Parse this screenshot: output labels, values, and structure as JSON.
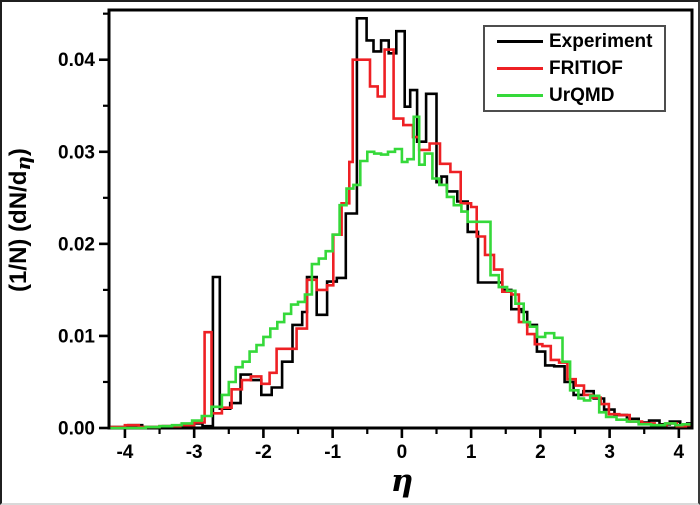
{
  "figure": {
    "background": "#ffffff",
    "frame_color": "#000000",
    "legend_border_color": "#4d4d4d"
  },
  "chart_data": {
    "type": "step-histogram",
    "title": "",
    "xlabel": "η",
    "ylabel": "(1/N) (dN/dη)",
    "ylabel_parts": [
      "(1/N) (dN/d",
      "η",
      ")"
    ],
    "xlim": [
      -4.23,
      4.19
    ],
    "ylim": [
      0,
      0.0454
    ],
    "grid": false,
    "legend_position": "top-right",
    "x_ticks": [
      -4,
      -3,
      -2,
      -1,
      0,
      1,
      2,
      3,
      4
    ],
    "x_tick_labels": [
      "-4",
      "-3",
      "-2",
      "-1",
      "0",
      "1",
      "2",
      "3",
      "4"
    ],
    "x_minor_ticks": [
      -3.5,
      -2.5,
      -1.5,
      -0.5,
      0.5,
      1.5,
      2.5,
      3.5
    ],
    "y_ticks": [
      0,
      0.01,
      0.02,
      0.03,
      0.04
    ],
    "y_tick_labels": [
      "0.00",
      "0.01",
      "0.02",
      "0.03",
      "0.04"
    ],
    "y_minor_ticks": [
      0.005,
      0.015,
      0.025,
      0.035,
      0.045
    ],
    "series": [
      {
        "name": "Experiment",
        "color": "#000000",
        "steps": [
          [
            -4.21,
            0.0001
          ],
          [
            -3.95,
            0.0003
          ],
          [
            -3.75,
            0.0001
          ],
          [
            -3.45,
            0.0002
          ],
          [
            -3.15,
            0.0003
          ],
          [
            -3.0,
            0.0005
          ],
          [
            -2.88,
            0.0002
          ],
          [
            -2.73,
            0.0164
          ],
          [
            -2.63,
            0.0021
          ],
          [
            -2.48,
            0.0027
          ],
          [
            -2.33,
            0.0058
          ],
          [
            -2.18,
            0.0052
          ],
          [
            -2.03,
            0.0036
          ],
          [
            -1.88,
            0.0044
          ],
          [
            -1.73,
            0.0072
          ],
          [
            -1.58,
            0.0112
          ],
          [
            -1.44,
            0.0126
          ],
          [
            -1.37,
            0.0164
          ],
          [
            -1.23,
            0.0123
          ],
          [
            -1.08,
            0.0159
          ],
          [
            -0.94,
            0.0163
          ],
          [
            -0.81,
            0.0233
          ],
          [
            -0.65,
            0.0445
          ],
          [
            -0.51,
            0.0421
          ],
          [
            -0.41,
            0.0409
          ],
          [
            -0.3,
            0.0421
          ],
          [
            -0.19,
            0.0407
          ],
          [
            -0.08,
            0.0431
          ],
          [
            0.04,
            0.0349
          ],
          [
            0.12,
            0.0367
          ],
          [
            0.22,
            0.0311
          ],
          [
            0.35,
            0.0363
          ],
          [
            0.5,
            0.0267
          ],
          [
            0.57,
            0.0273
          ],
          [
            0.65,
            0.0257
          ],
          [
            0.8,
            0.0246
          ],
          [
            0.95,
            0.0213
          ],
          [
            1.1,
            0.0158
          ],
          [
            1.45,
            0.015
          ],
          [
            1.58,
            0.0129
          ],
          [
            1.73,
            0.0126
          ],
          [
            1.81,
            0.0112
          ],
          [
            1.95,
            0.0083
          ],
          [
            2.07,
            0.0068
          ],
          [
            2.2,
            0.0067
          ],
          [
            2.35,
            0.005
          ],
          [
            2.48,
            0.0036
          ],
          [
            2.62,
            0.004
          ],
          [
            2.77,
            0.0032
          ],
          [
            2.92,
            0.002
          ],
          [
            3.07,
            0.0014
          ],
          [
            3.25,
            0.001
          ],
          [
            3.42,
            0.0006
          ],
          [
            3.57,
            0.0008
          ],
          [
            3.72,
            0.0004
          ],
          [
            3.87,
            0.0007
          ],
          [
            4.02,
            0.0003
          ],
          [
            4.12,
            0.0005
          ]
        ]
      },
      {
        "name": "FRITIOF",
        "color": "#ee2024",
        "steps": [
          [
            -4.21,
            0.0001
          ],
          [
            -4.0,
            0.0003
          ],
          [
            -3.8,
            0.0001
          ],
          [
            -3.5,
            0.0002
          ],
          [
            -3.2,
            0.0003
          ],
          [
            -3.0,
            0.0006
          ],
          [
            -2.85,
            0.0104
          ],
          [
            -2.75,
            0.0016
          ],
          [
            -2.6,
            0.0022
          ],
          [
            -2.46,
            0.0042
          ],
          [
            -2.31,
            0.0052
          ],
          [
            -2.18,
            0.0056
          ],
          [
            -2.03,
            0.0048
          ],
          [
            -1.91,
            0.006
          ],
          [
            -1.81,
            0.0086
          ],
          [
            -1.52,
            0.0108
          ],
          [
            -1.37,
            0.0161
          ],
          [
            -1.23,
            0.015
          ],
          [
            -1.08,
            0.0155
          ],
          [
            -0.99,
            0.021
          ],
          [
            -0.87,
            0.0244
          ],
          [
            -0.76,
            0.0289
          ],
          [
            -0.71,
            0.04
          ],
          [
            -0.46,
            0.0371
          ],
          [
            -0.35,
            0.036
          ],
          [
            -0.25,
            0.0411
          ],
          [
            -0.12,
            0.0336
          ],
          [
            0.02,
            0.0329
          ],
          [
            0.16,
            0.0316
          ],
          [
            0.25,
            0.0302
          ],
          [
            0.4,
            0.0309
          ],
          [
            0.55,
            0.0287
          ],
          [
            0.7,
            0.0278
          ],
          [
            0.85,
            0.0244
          ],
          [
            1.0,
            0.024
          ],
          [
            1.08,
            0.0208
          ],
          [
            1.2,
            0.0188
          ],
          [
            1.33,
            0.0172
          ],
          [
            1.45,
            0.0148
          ],
          [
            1.58,
            0.0145
          ],
          [
            1.69,
            0.0115
          ],
          [
            1.81,
            0.0102
          ],
          [
            1.92,
            0.0091
          ],
          [
            2.03,
            0.0089
          ],
          [
            2.15,
            0.0074
          ],
          [
            2.27,
            0.0071
          ],
          [
            2.39,
            0.0053
          ],
          [
            2.51,
            0.0046
          ],
          [
            2.63,
            0.0036
          ],
          [
            2.75,
            0.0033
          ],
          [
            2.87,
            0.0026
          ],
          [
            2.99,
            0.0015
          ],
          [
            3.14,
            0.0014
          ],
          [
            3.29,
            0.0007
          ],
          [
            3.47,
            0.0005
          ],
          [
            3.65,
            0.0003
          ],
          [
            3.82,
            0.0005
          ],
          [
            3.97,
            0.0002
          ],
          [
            4.1,
            0.0003
          ]
        ]
      },
      {
        "name": "UrQMD",
        "color": "#35d93a",
        "steps": [
          [
            -4.21,
            0.0
          ],
          [
            -3.7,
            0.0001
          ],
          [
            -3.5,
            0.0002
          ],
          [
            -3.32,
            0.0003
          ],
          [
            -3.18,
            0.0005
          ],
          [
            -3.03,
            0.0008
          ],
          [
            -2.89,
            0.0013
          ],
          [
            -2.75,
            0.0023
          ],
          [
            -2.6,
            0.0036
          ],
          [
            -2.5,
            0.005
          ],
          [
            -2.4,
            0.0066
          ],
          [
            -2.3,
            0.0072
          ],
          [
            -2.2,
            0.0083
          ],
          [
            -2.1,
            0.009
          ],
          [
            -2.0,
            0.0099
          ],
          [
            -1.9,
            0.0108
          ],
          [
            -1.8,
            0.0115
          ],
          [
            -1.7,
            0.0124
          ],
          [
            -1.6,
            0.0134
          ],
          [
            -1.5,
            0.0137
          ],
          [
            -1.4,
            0.0145
          ],
          [
            -1.3,
            0.0178
          ],
          [
            -1.2,
            0.0184
          ],
          [
            -1.1,
            0.0192
          ],
          [
            -1.0,
            0.021
          ],
          [
            -0.9,
            0.0242
          ],
          [
            -0.8,
            0.026
          ],
          [
            -0.7,
            0.0264
          ],
          [
            -0.6,
            0.029
          ],
          [
            -0.5,
            0.03
          ],
          [
            -0.4,
            0.0298
          ],
          [
            -0.3,
            0.0297
          ],
          [
            -0.2,
            0.03
          ],
          [
            -0.1,
            0.0303
          ],
          [
            0.0,
            0.0289
          ],
          [
            0.08,
            0.0292
          ],
          [
            0.17,
            0.0338
          ],
          [
            0.25,
            0.0286
          ],
          [
            0.33,
            0.0298
          ],
          [
            0.44,
            0.0271
          ],
          [
            0.54,
            0.0264
          ],
          [
            0.65,
            0.0251
          ],
          [
            0.75,
            0.0242
          ],
          [
            0.86,
            0.0235
          ],
          [
            0.95,
            0.0224
          ],
          [
            1.28,
            0.0166
          ],
          [
            1.4,
            0.0153
          ],
          [
            1.52,
            0.0149
          ],
          [
            1.64,
            0.0135
          ],
          [
            1.76,
            0.0115
          ],
          [
            1.85,
            0.011
          ],
          [
            1.95,
            0.0099
          ],
          [
            2.07,
            0.0103
          ],
          [
            2.2,
            0.0098
          ],
          [
            2.32,
            0.0072
          ],
          [
            2.43,
            0.0041
          ],
          [
            2.55,
            0.0032
          ],
          [
            2.63,
            0.003
          ],
          [
            2.72,
            0.0035
          ],
          [
            2.85,
            0.0017
          ],
          [
            2.95,
            0.0012
          ],
          [
            3.1,
            0.0009
          ],
          [
            3.25,
            0.0007
          ],
          [
            3.42,
            0.0004
          ],
          [
            3.6,
            0.0003
          ],
          [
            3.8,
            0.0005
          ],
          [
            3.95,
            0.0003
          ],
          [
            4.05,
            0.0004
          ]
        ]
      }
    ]
  },
  "legend": {
    "items": [
      {
        "label": "Experiment"
      },
      {
        "label": "FRITIOF"
      },
      {
        "label": "UrQMD"
      }
    ]
  }
}
